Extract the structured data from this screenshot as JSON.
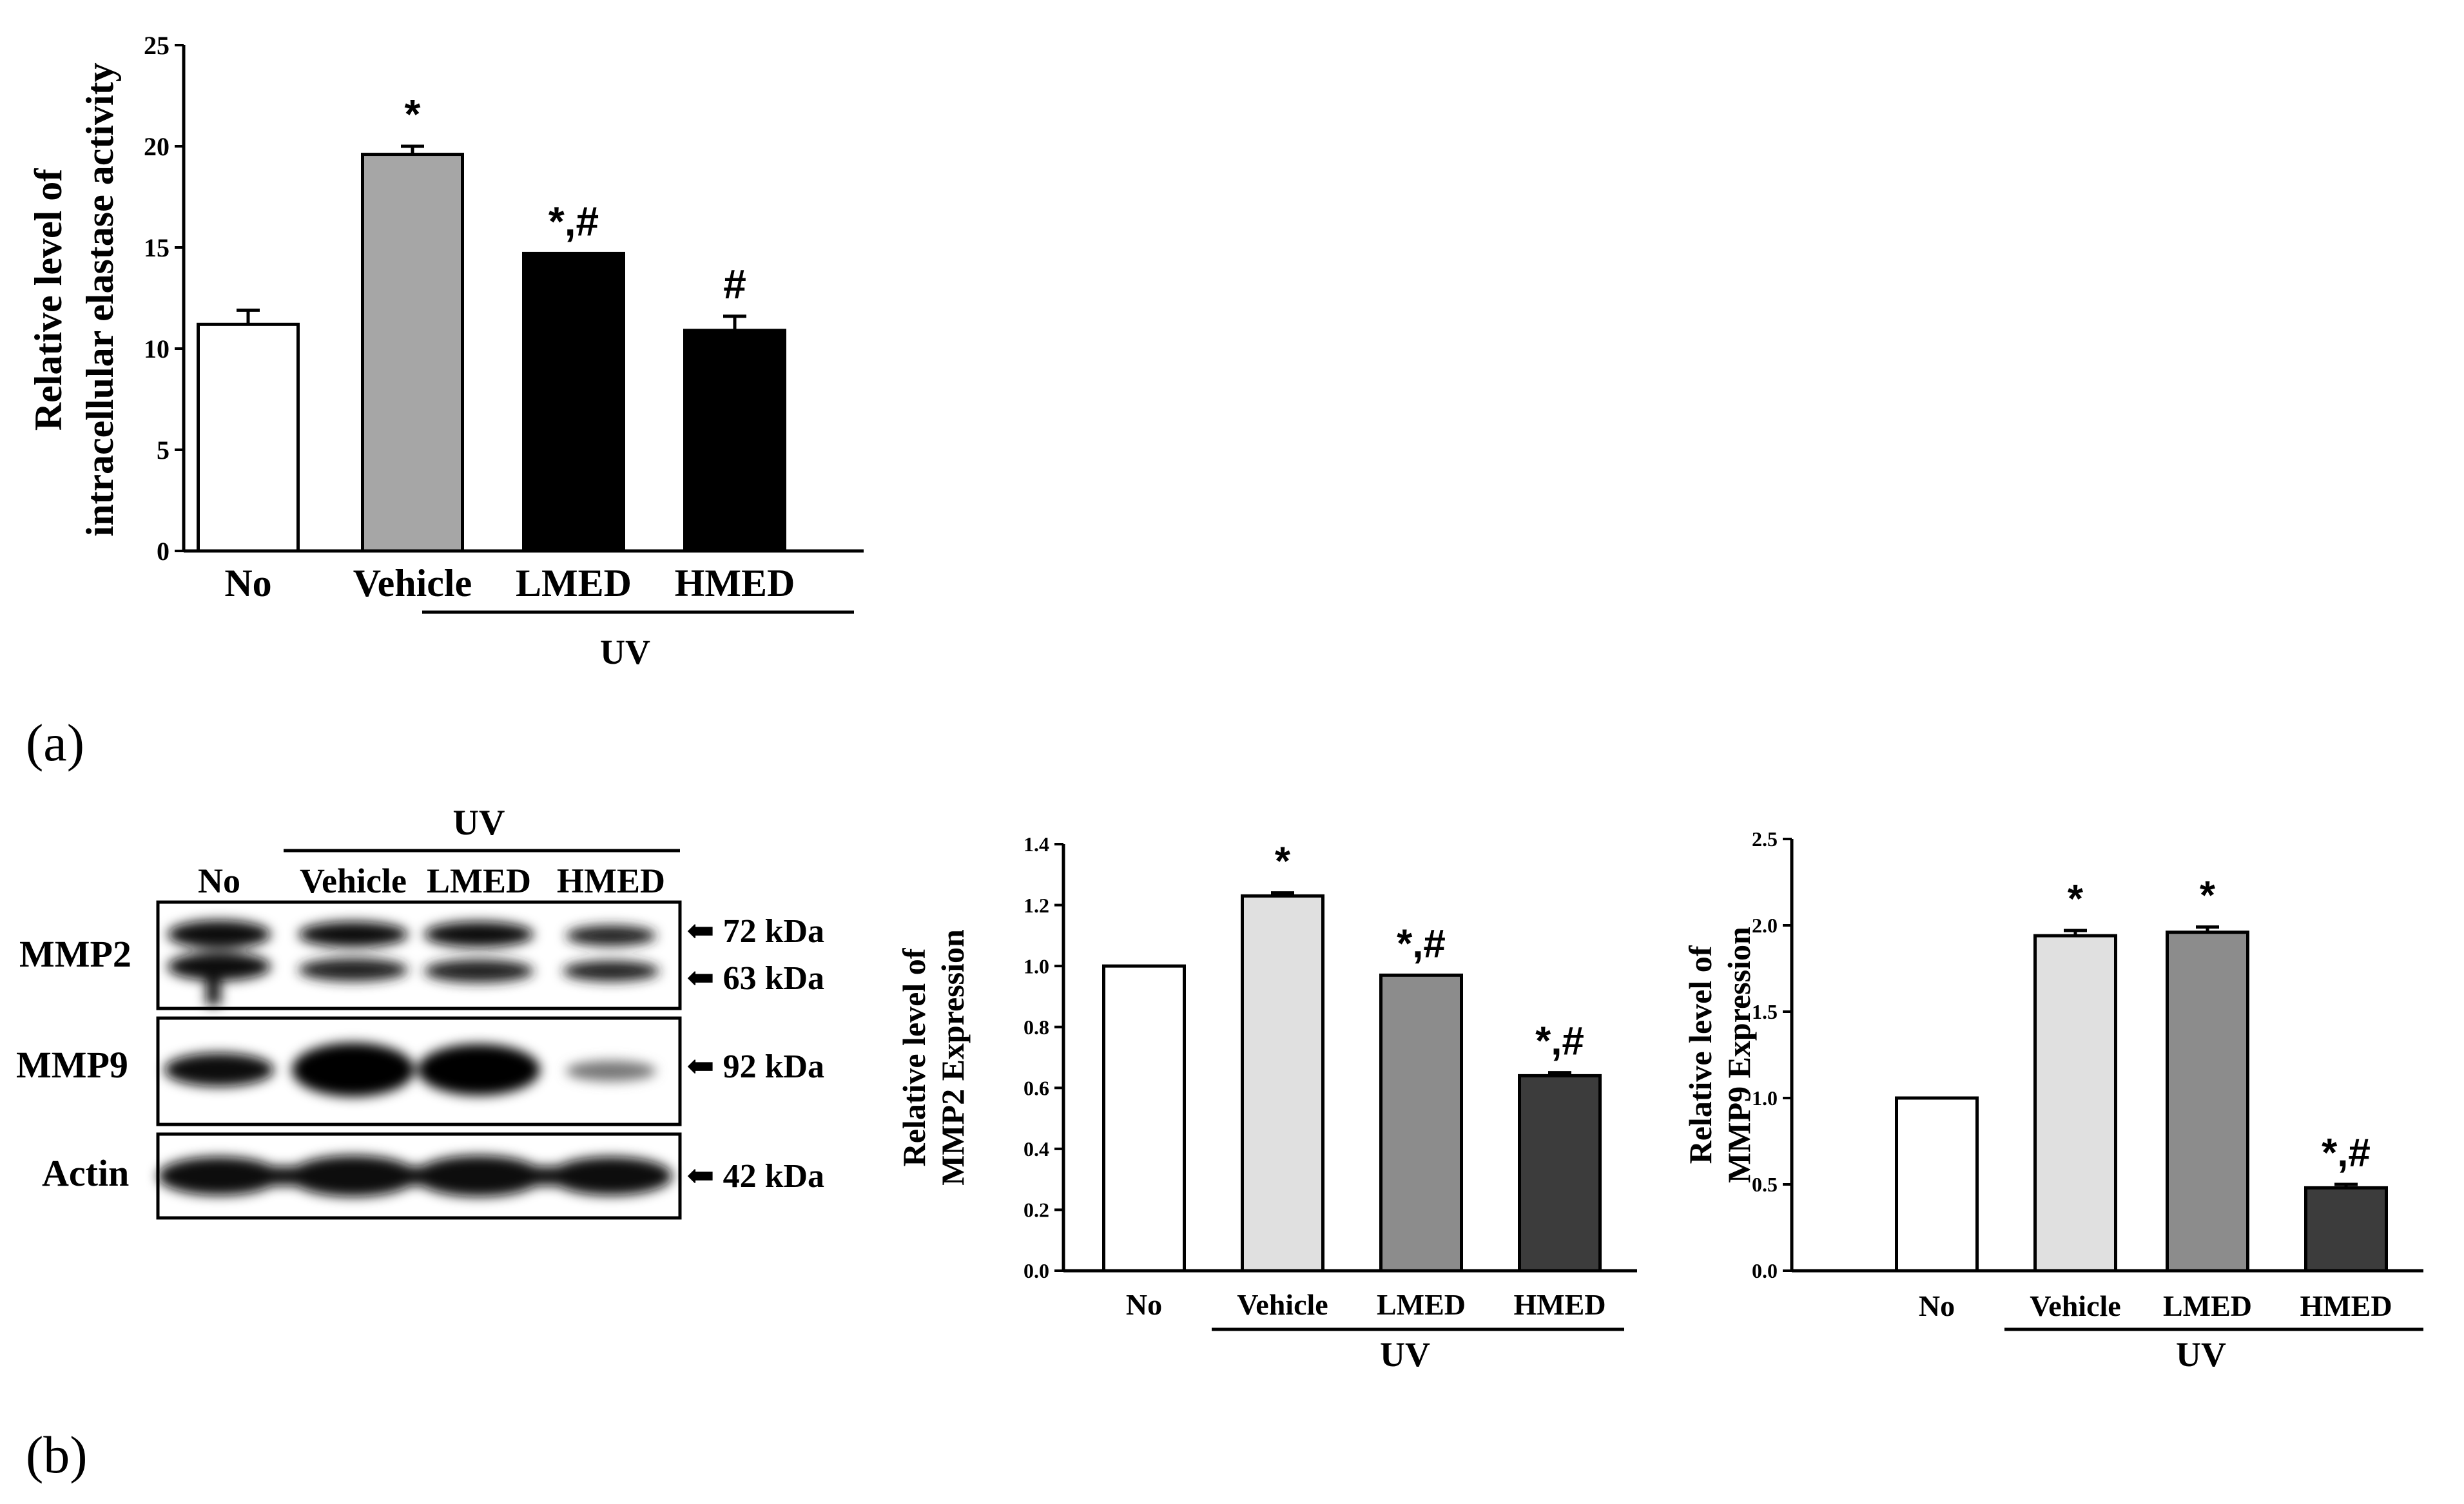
{
  "panel_labels": [
    "(a)",
    "(b)"
  ],
  "chart_data": [
    {
      "type": "bar",
      "panel": "(a)",
      "title": "",
      "ylabel": [
        "Relative level of",
        "intracellular elastase activity"
      ],
      "xlabel": "",
      "categories": [
        "No",
        "Vehicle",
        "LMED",
        "HMED"
      ],
      "group_label": "UV",
      "values": [
        11.2,
        19.6,
        14.7,
        10.9
      ],
      "errors": [
        0.7,
        0.4,
        0.0,
        0.7
      ],
      "annotations": [
        "",
        "*",
        "*,#",
        "#"
      ],
      "bar_colors": [
        "#ffffff",
        "#a6a6a6",
        "#000000",
        "#000000"
      ],
      "ylim": [
        0,
        25
      ],
      "yticks": [
        "0",
        "5",
        "10",
        "15",
        "20",
        "25"
      ]
    },
    {
      "type": "bar",
      "panel": "(b)",
      "title": "",
      "ylabel": [
        "Relative level of",
        "MMP2 Expression"
      ],
      "xlabel": "",
      "categories": [
        "No",
        "Vehicle",
        "LMED",
        "HMED"
      ],
      "group_label": "UV",
      "values": [
        1.0,
        1.23,
        0.97,
        0.64
      ],
      "errors": [
        0.0,
        0.01,
        0.0,
        0.01
      ],
      "annotations": [
        "",
        "*",
        "*,#",
        "*,#"
      ],
      "bar_colors": [
        "#ffffff",
        "#e0e0e0",
        "#8c8c8c",
        "#3c3c3c"
      ],
      "ylim": [
        0,
        1.4
      ],
      "yticks": [
        "0.0",
        "0.2",
        "0.4",
        "0.6",
        "0.8",
        "1.0",
        "1.2",
        "1.4"
      ]
    },
    {
      "type": "bar",
      "panel": "(b)",
      "title": "",
      "ylabel": [
        "Relative level of",
        "MMP9 Expression"
      ],
      "xlabel": "",
      "categories": [
        "No",
        "Vehicle",
        "LMED",
        "HMED"
      ],
      "group_label": "UV",
      "values": [
        1.0,
        1.94,
        1.96,
        0.48
      ],
      "errors": [
        0.0,
        0.03,
        0.03,
        0.02
      ],
      "annotations": [
        "",
        "*",
        "*",
        "*,#"
      ],
      "bar_colors": [
        "#ffffff",
        "#e0e0e0",
        "#8c8c8c",
        "#3c3c3c"
      ],
      "ylim": [
        0,
        2.5
      ],
      "yticks": [
        "0.0",
        "0.5",
        "1.0",
        "1.5",
        "2.0",
        "2.5"
      ]
    }
  ],
  "western_blot": {
    "group_label": "UV",
    "lanes": [
      "No",
      "Vehicle",
      "LMED",
      "HMED"
    ],
    "rows": [
      {
        "label": "MMP2",
        "markers": [
          "72 kDa",
          "63 kDa"
        ]
      },
      {
        "label": "MMP9",
        "markers": [
          "92 kDa"
        ]
      },
      {
        "label": "Actin",
        "markers": [
          "42 kDa"
        ]
      }
    ]
  }
}
